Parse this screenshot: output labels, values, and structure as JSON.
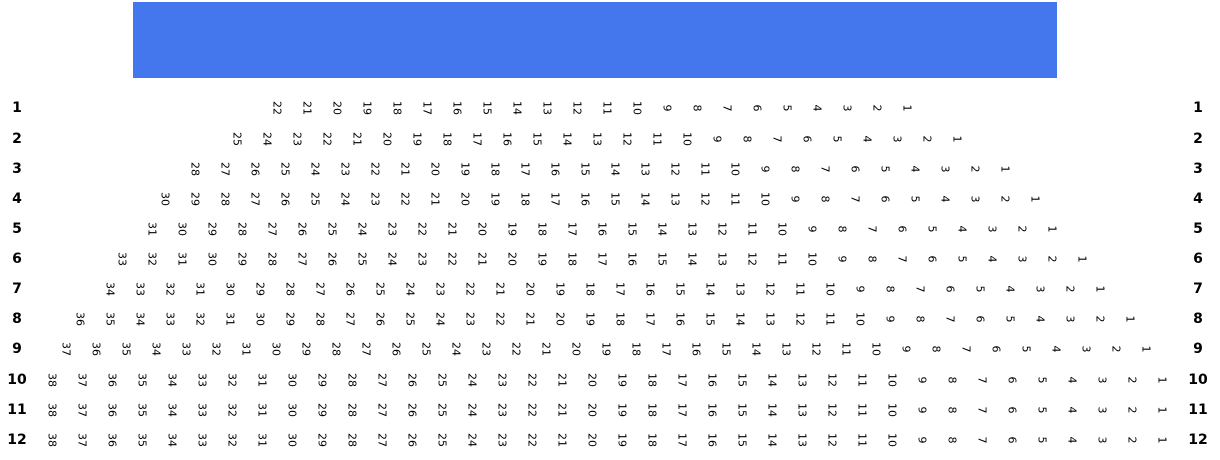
{
  "screen": {
    "color": "#4477EE"
  },
  "rows": [
    {
      "label": "1",
      "seats": [
        "22",
        "21",
        "20",
        "19",
        "18",
        "17",
        "16",
        "15",
        "14",
        "13",
        "12",
        "11",
        "10",
        "9",
        "8",
        "7",
        "6",
        "5",
        "4",
        "3",
        "2",
        "1"
      ]
    },
    {
      "label": "2",
      "seats": [
        "25",
        "24",
        "23",
        "22",
        "21",
        "20",
        "19",
        "18",
        "17",
        "16",
        "15",
        "14",
        "13",
        "12",
        "11",
        "10",
        "9",
        "8",
        "7",
        "6",
        "5",
        "4",
        "3",
        "2",
        "1"
      ]
    },
    {
      "label": "3",
      "seats": [
        "28",
        "27",
        "26",
        "25",
        "24",
        "23",
        "22",
        "21",
        "20",
        "19",
        "18",
        "17",
        "16",
        "15",
        "14",
        "13",
        "12",
        "11",
        "10",
        "9",
        "8",
        "7",
        "6",
        "5",
        "4",
        "3",
        "2",
        "1"
      ]
    },
    {
      "label": "4",
      "seats": [
        "30",
        "29",
        "28",
        "27",
        "26",
        "25",
        "24",
        "23",
        "22",
        "21",
        "20",
        "19",
        "18",
        "17",
        "16",
        "15",
        "14",
        "13",
        "12",
        "11",
        "10",
        "9",
        "8",
        "7",
        "6",
        "5",
        "4",
        "3",
        "2",
        "1"
      ]
    },
    {
      "label": "5",
      "seats": [
        "31",
        "30",
        "29",
        "28",
        "27",
        "26",
        "25",
        "24",
        "23",
        "22",
        "21",
        "20",
        "19",
        "18",
        "17",
        "16",
        "15",
        "14",
        "13",
        "12",
        "11",
        "10",
        "9",
        "8",
        "7",
        "6",
        "5",
        "4",
        "3",
        "2",
        "1"
      ]
    },
    {
      "label": "6",
      "seats": [
        "33",
        "32",
        "31",
        "30",
        "29",
        "28",
        "27",
        "26",
        "25",
        "24",
        "23",
        "22",
        "21",
        "20",
        "19",
        "18",
        "17",
        "16",
        "15",
        "14",
        "13",
        "12",
        "11",
        "10",
        "9",
        "8",
        "7",
        "6",
        "5",
        "4",
        "3",
        "2",
        "1"
      ]
    },
    {
      "label": "7",
      "seats": [
        "34",
        "33",
        "32",
        "31",
        "30",
        "29",
        "28",
        "27",
        "26",
        "25",
        "24",
        "23",
        "22",
        "21",
        "20",
        "19",
        "18",
        "17",
        "16",
        "15",
        "14",
        "13",
        "12",
        "11",
        "10",
        "9",
        "8",
        "7",
        "6",
        "5",
        "4",
        "3",
        "2",
        "1"
      ]
    },
    {
      "label": "8",
      "seats": [
        "36",
        "35",
        "34",
        "33",
        "32",
        "31",
        "30",
        "29",
        "28",
        "27",
        "26",
        "25",
        "24",
        "23",
        "22",
        "21",
        "20",
        "19",
        "18",
        "17",
        "16",
        "15",
        "14",
        "13",
        "12",
        "11",
        "10",
        "9",
        "8",
        "7",
        "6",
        "5",
        "4",
        "3",
        "2",
        "1"
      ]
    },
    {
      "label": "9",
      "seats": [
        "37",
        "36",
        "35",
        "34",
        "33",
        "32",
        "31",
        "30",
        "29",
        "28",
        "27",
        "26",
        "25",
        "24",
        "23",
        "22",
        "21",
        "20",
        "19",
        "18",
        "17",
        "16",
        "15",
        "14",
        "13",
        "12",
        "11",
        "10",
        "9",
        "8",
        "7",
        "6",
        "5",
        "4",
        "3",
        "2",
        "1"
      ]
    },
    {
      "label": "10",
      "seats": [
        "38",
        "37",
        "36",
        "35",
        "34",
        "33",
        "32",
        "31",
        "30",
        "29",
        "28",
        "27",
        "26",
        "25",
        "24",
        "23",
        "22",
        "21",
        "20",
        "19",
        "18",
        "17",
        "16",
        "15",
        "14",
        "13",
        "12",
        "11",
        "10",
        "9",
        "8",
        "7",
        "6",
        "5",
        "4",
        "3",
        "2",
        "1"
      ]
    },
    {
      "label": "11",
      "seats": [
        "38",
        "37",
        "36",
        "35",
        "34",
        "33",
        "32",
        "31",
        "30",
        "29",
        "28",
        "27",
        "26",
        "25",
        "24",
        "23",
        "22",
        "21",
        "20",
        "19",
        "18",
        "17",
        "16",
        "15",
        "14",
        "13",
        "12",
        "11",
        "10",
        "9",
        "8",
        "7",
        "6",
        "5",
        "4",
        "3",
        "2",
        "1"
      ]
    },
    {
      "label": "12",
      "seats": [
        "38",
        "37",
        "36",
        "35",
        "34",
        "33",
        "32",
        "31",
        "30",
        "29",
        "28",
        "27",
        "26",
        "25",
        "24",
        "23",
        "22",
        "21",
        "20",
        "19",
        "18",
        "17",
        "16",
        "15",
        "14",
        "13",
        "12",
        "11",
        "10",
        "9",
        "8",
        "7",
        "6",
        "5",
        "4",
        "3",
        "2",
        "1"
      ]
    }
  ]
}
